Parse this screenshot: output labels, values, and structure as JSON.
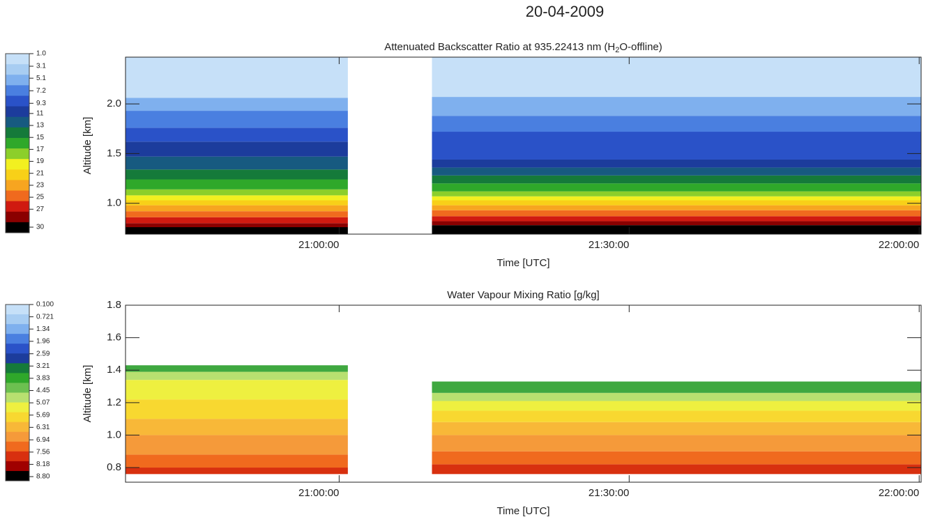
{
  "title": "20-04-2009",
  "chart_data": [
    {
      "type": "heatmap",
      "title_parts": [
        "Attenuated Backscatter Ratio at 935.22413 nm    (H",
        "2",
        "O-offline)"
      ],
      "xlabel": "Time [UTC]",
      "ylabel": "Altitude [km]",
      "xlim": [
        1237.9,
        1320.2
      ],
      "ylim": [
        0.69,
        2.47
      ],
      "xticks": [
        {
          "value": 1260,
          "label": "21:00:00"
        },
        {
          "value": 1290,
          "label": "21:30:00"
        },
        {
          "value": 1320,
          "label": "22:00:00"
        }
      ],
      "yticks": [
        {
          "value": 1.0,
          "label": "1.0"
        },
        1.5,
        {
          "value": 2.0,
          "label": "2.0"
        }
      ],
      "segments": [
        [
          1237.9,
          1260.9
        ],
        [
          1269.6,
          1320.2
        ]
      ],
      "base": [
        0.69,
        0.69
      ],
      "bands": [
        {
          "color": "#000000",
          "tops": [
            0.76,
            0.78
          ]
        },
        {
          "color": "#8a0000",
          "tops": [
            0.8,
            0.82
          ]
        },
        {
          "color": "#d01a10",
          "tops": [
            0.86,
            0.87
          ]
        },
        {
          "color": "#f06a1e",
          "tops": [
            0.92,
            0.93
          ]
        },
        {
          "color": "#f7a520",
          "tops": [
            0.98,
            0.98
          ]
        },
        {
          "color": "#f8d018",
          "tops": [
            1.03,
            1.03
          ]
        },
        {
          "color": "#f2f020",
          "tops": [
            1.08,
            1.07
          ]
        },
        {
          "color": "#8ccf2a",
          "tops": [
            1.14,
            1.12
          ]
        },
        {
          "color": "#2fa82a",
          "tops": [
            1.24,
            1.2
          ]
        },
        {
          "color": "#157a3a",
          "tops": [
            1.34,
            1.28
          ]
        },
        {
          "color": "#175a80",
          "tops": [
            1.47,
            1.36
          ]
        },
        {
          "color": "#1c3c9c",
          "tops": [
            1.62,
            1.44
          ]
        },
        {
          "color": "#2a52c8",
          "tops": [
            1.76,
            1.72
          ]
        },
        {
          "color": "#4a7fe0",
          "tops": [
            1.93,
            1.88
          ]
        },
        {
          "color": "#7fb0ee",
          "tops": [
            2.06,
            2.07
          ]
        },
        {
          "color": "#c6e0f8",
          "tops": [
            2.47,
            2.47
          ]
        }
      ],
      "colorbar": {
        "colors": [
          "#c6e0f8",
          "#a8cdf2",
          "#7fb0ee",
          "#4a7fe0",
          "#2a52c8",
          "#1c3c9c",
          "#175a80",
          "#157a3a",
          "#2fa82a",
          "#8ccf2a",
          "#f2f020",
          "#f8d018",
          "#f7a520",
          "#f06a1e",
          "#d01a10",
          "#8a0000",
          "#000000"
        ],
        "ticks": [
          {
            "value": 1.0,
            "label": "1.0"
          },
          3.1,
          5.1,
          7.2,
          9.3,
          11,
          13,
          15,
          17,
          19,
          21,
          23,
          25,
          27,
          30
        ]
      }
    },
    {
      "type": "heatmap",
      "title_parts": [
        "Water Vapour Mixing Ratio [g/kg]"
      ],
      "xlabel": "Time [UTC]",
      "ylabel": "Altitude [km]",
      "xlim": [
        1237.9,
        1320.2
      ],
      "ylim": [
        0.71,
        1.8
      ],
      "xticks": [
        {
          "value": 1260,
          "label": "21:00:00"
        },
        {
          "value": 1290,
          "label": "21:30:00"
        },
        {
          "value": 1320,
          "label": "22:00:00"
        }
      ],
      "yticks": [
        0.8,
        {
          "value": 1.0,
          "label": "1.0"
        },
        1.2,
        1.4,
        1.6,
        1.8
      ],
      "segments": [
        [
          1237.9,
          1260.9
        ],
        [
          1269.6,
          1320.2
        ]
      ],
      "base": [
        0.76,
        0.76
      ],
      "bands": [
        {
          "color": "#d8300f",
          "tops": [
            0.8,
            0.82
          ]
        },
        {
          "color": "#f06a1e",
          "tops": [
            0.88,
            0.9
          ]
        },
        {
          "color": "#f59a3a",
          "tops": [
            1.0,
            1.0
          ]
        },
        {
          "color": "#f8b838",
          "tops": [
            1.1,
            1.08
          ]
        },
        {
          "color": "#f8d830",
          "tops": [
            1.22,
            1.15
          ]
        },
        {
          "color": "#eef040",
          "tops": [
            1.34,
            1.21
          ]
        },
        {
          "color": "#b8e070",
          "tops": [
            1.39,
            1.26
          ]
        },
        {
          "color": "#3fa840",
          "tops": [
            1.43,
            1.33
          ]
        }
      ],
      "colorbar": {
        "colors": [
          "#c6e0f8",
          "#a8cdf2",
          "#7fb0ee",
          "#4a7fe0",
          "#2a52c8",
          "#1c3c9c",
          "#157a3a",
          "#2fa82a",
          "#6cc050",
          "#b8e070",
          "#eef040",
          "#f8d830",
          "#f8b838",
          "#f59a3a",
          "#f06a1e",
          "#d8300f",
          "#a00000",
          "#000000"
        ],
        "ticks": [
          {
            "value": 0.1,
            "label": "0.100"
          },
          0.721,
          1.34,
          1.96,
          2.59,
          3.21,
          3.83,
          4.45,
          5.07,
          5.69,
          6.31,
          6.94,
          7.56,
          8.18,
          {
            "value": 8.8,
            "label": "8.80"
          }
        ]
      }
    }
  ]
}
